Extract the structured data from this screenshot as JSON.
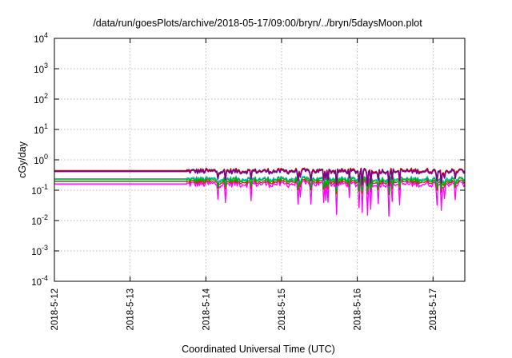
{
  "chart_data": {
    "type": "line",
    "title": "/data/run/goesPlots/archive/2018-05-17/09:00/bryn/../bryn/5daysMoon.plot",
    "xlabel": "Coordinated Universal Time (UTC)",
    "ylabel": "cGy/day",
    "yscale": "log",
    "ylim": [
      0.0001,
      10000
    ],
    "xlim": [
      0,
      5.42
    ],
    "x_unit": "days since 2018-5-12 00:00",
    "grid": true,
    "y_ticks": [
      {
        "base": "10",
        "exp": "4",
        "value": 10000
      },
      {
        "base": "10",
        "exp": "3",
        "value": 1000
      },
      {
        "base": "10",
        "exp": "2",
        "value": 100
      },
      {
        "base": "10",
        "exp": "1",
        "value": 10
      },
      {
        "base": "10",
        "exp": "0",
        "value": 1
      },
      {
        "base": "10",
        "exp": "-1",
        "value": 0.1
      },
      {
        "base": "10",
        "exp": "-2",
        "value": 0.01
      },
      {
        "base": "10",
        "exp": "-3",
        "value": 0.001
      },
      {
        "base": "10",
        "exp": "-4",
        "value": 0.0001
      }
    ],
    "x_ticks": [
      {
        "label": "2018-5-12",
        "value": 0
      },
      {
        "label": "2018-5-13",
        "value": 1
      },
      {
        "label": "2018-5-14",
        "value": 2
      },
      {
        "label": "2018-5-15",
        "value": 3
      },
      {
        "label": "2018-5-16",
        "value": 4
      },
      {
        "label": "2018-5-17",
        "value": 5
      }
    ],
    "data_start": 1.75,
    "series": [
      {
        "color": "#ff00ff",
        "flat_level": 0.16,
        "variability": 0.22,
        "dip_depth": 0.55
      },
      {
        "color": "#cc2222",
        "flat_level": 0.19,
        "variability": 0.16,
        "dip_depth": 0.3
      },
      {
        "color": "#00c8c8",
        "flat_level": 0.24,
        "variability": 0.16,
        "dip_depth": 0.3
      },
      {
        "color": "#00b000",
        "flat_level": 0.22,
        "variability": 0.16,
        "dip_depth": 0.3
      },
      {
        "color": "#ff0000",
        "flat_level": 0.44,
        "variability": 0.16,
        "dip_depth": 0.35
      },
      {
        "color": "#3070e0",
        "flat_level": 0.41,
        "variability": 0.16,
        "dip_depth": 0.35
      },
      {
        "color": "#800080",
        "flat_level": 0.42,
        "variability": 0.16,
        "dip_depth": 0.35
      }
    ]
  }
}
